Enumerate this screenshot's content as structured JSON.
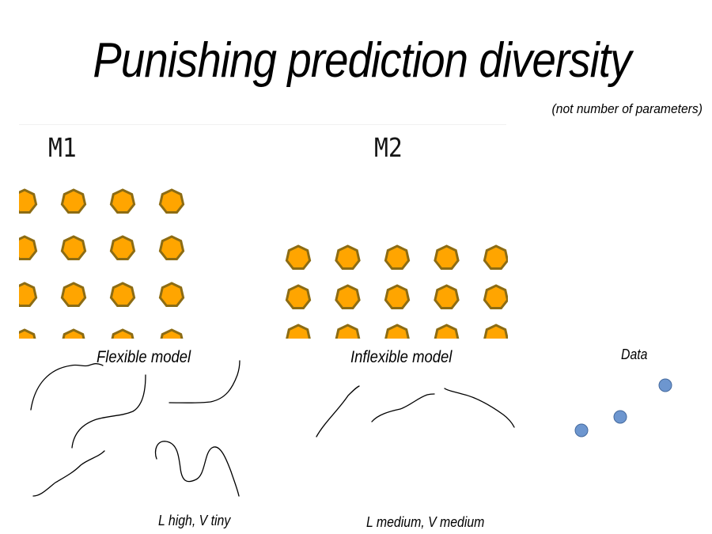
{
  "slide": {
    "title": "Punishing prediction diversity",
    "subtitle": "(not number of parameters)"
  },
  "models": [
    {
      "label": "M1",
      "rows": 4,
      "cols": 4
    },
    {
      "label": "M2",
      "rows": 3,
      "cols": 5
    }
  ],
  "captions": {
    "flexible": "Flexible model",
    "inflexible": "Inflexible model",
    "data": "Data",
    "flexible_stats": "L high, V tiny",
    "inflexible_stats": "L medium, V medium"
  },
  "colors": {
    "heptagon_fill": "#FFA500",
    "heptagon_stroke": "#8C6C14",
    "data_point_fill": "#6D96CF",
    "data_point_stroke": "#44699D",
    "curve": "#000000"
  },
  "data_points_count": 3
}
